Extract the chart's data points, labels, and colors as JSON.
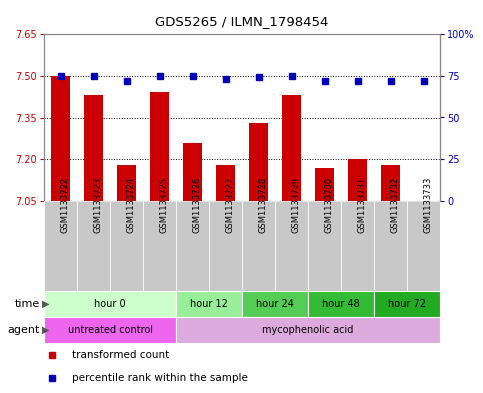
{
  "title": "GDS5265 / ILMN_1798454",
  "samples": [
    "GSM1133722",
    "GSM1133723",
    "GSM1133724",
    "GSM1133725",
    "GSM1133726",
    "GSM1133727",
    "GSM1133728",
    "GSM1133729",
    "GSM1133730",
    "GSM1133731",
    "GSM1133732",
    "GSM1133733"
  ],
  "transformed_count": [
    7.5,
    7.43,
    7.18,
    7.44,
    7.26,
    7.18,
    7.33,
    7.43,
    7.17,
    7.2,
    7.18,
    7.05
  ],
  "percentile_rank": [
    75,
    75,
    72,
    75,
    75,
    73,
    74,
    75,
    72,
    72,
    72,
    72
  ],
  "ylim_left": [
    7.05,
    7.65
  ],
  "ylim_right": [
    0,
    100
  ],
  "yticks_left": [
    7.05,
    7.2,
    7.35,
    7.5,
    7.65
  ],
  "yticks_right": [
    0,
    25,
    50,
    75,
    100
  ],
  "bar_color": "#cc0000",
  "dot_color": "#0000bb",
  "grid_color": "#000000",
  "sample_bg_color": "#c8c8c8",
  "time_groups": [
    {
      "label": "hour 0",
      "start": 0,
      "end": 4,
      "color": "#ccffcc"
    },
    {
      "label": "hour 12",
      "start": 4,
      "end": 6,
      "color": "#99ee99"
    },
    {
      "label": "hour 24",
      "start": 6,
      "end": 8,
      "color": "#55cc55"
    },
    {
      "label": "hour 48",
      "start": 8,
      "end": 10,
      "color": "#33bb33"
    },
    {
      "label": "hour 72",
      "start": 10,
      "end": 12,
      "color": "#22aa22"
    }
  ],
  "agent_groups": [
    {
      "label": "untreated control",
      "start": 0,
      "end": 4,
      "color": "#ee66ee"
    },
    {
      "label": "mycophenolic acid",
      "start": 4,
      "end": 12,
      "color": "#ddaadd"
    }
  ],
  "legend_items": [
    {
      "label": "transformed count",
      "color": "#cc0000",
      "marker": "s"
    },
    {
      "label": "percentile rank within the sample",
      "color": "#0000bb",
      "marker": "s"
    }
  ],
  "bar_width": 0.6
}
